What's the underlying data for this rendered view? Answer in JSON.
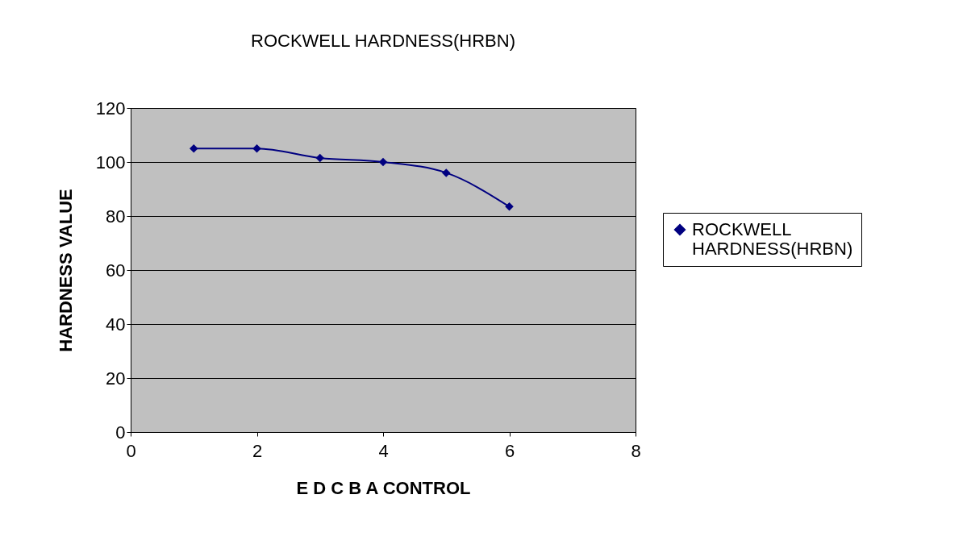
{
  "chart_data": {
    "type": "line",
    "title": "ROCKWELL HARDNESS(HRBN)",
    "xlabel": "E   D    C   B    A    CONTROL",
    "ylabel": "HARDNESS VALUE",
    "x": [
      1,
      2,
      3,
      4,
      5,
      6
    ],
    "series": [
      {
        "name": "ROCKWELL HARDNESS(HRBN)",
        "color": "#000080",
        "values": [
          105,
          105,
          101.5,
          100,
          96,
          83.5
        ]
      }
    ],
    "xlim": [
      0,
      8
    ],
    "xticks": [
      {
        "value": 0,
        "label": "0"
      },
      {
        "value": 2,
        "label": "2"
      },
      {
        "value": 4,
        "label": "4"
      },
      {
        "value": 6,
        "label": "6"
      },
      {
        "value": 8,
        "label": "8"
      }
    ],
    "ylim": [
      0,
      120
    ],
    "yticks": [
      0,
      20,
      40,
      60,
      80,
      100,
      120
    ],
    "grid": "y",
    "legend": "right",
    "marker": "diamond",
    "line_style": "solid"
  }
}
